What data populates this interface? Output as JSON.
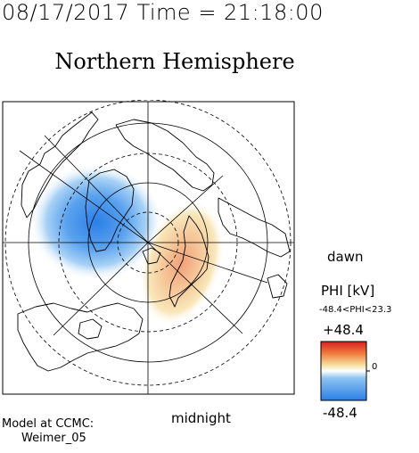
{
  "header": {
    "timestamp": "08/17/2017 Time = 21:18:00",
    "title": "Northern Hemisphere"
  },
  "map_labels": {
    "dawn": "dawn",
    "midnight": "midnight"
  },
  "colorbar": {
    "title": "PHI [kV]",
    "range": "-48.4<PHI<23.3",
    "max": "+48.4",
    "min": "-48.4",
    "zero": "0",
    "phi_min": -48.4,
    "phi_max": 23.3,
    "scale_min": -48.4,
    "scale_max": 48.4,
    "colors": [
      "#2a7fe6",
      "#8ec4f2",
      "#ffffff",
      "#f5e0a0",
      "#f07a3c",
      "#d62020"
    ]
  },
  "footer": {
    "model_line": "Model at CCMC:",
    "model_name": "Weimer_05"
  }
}
